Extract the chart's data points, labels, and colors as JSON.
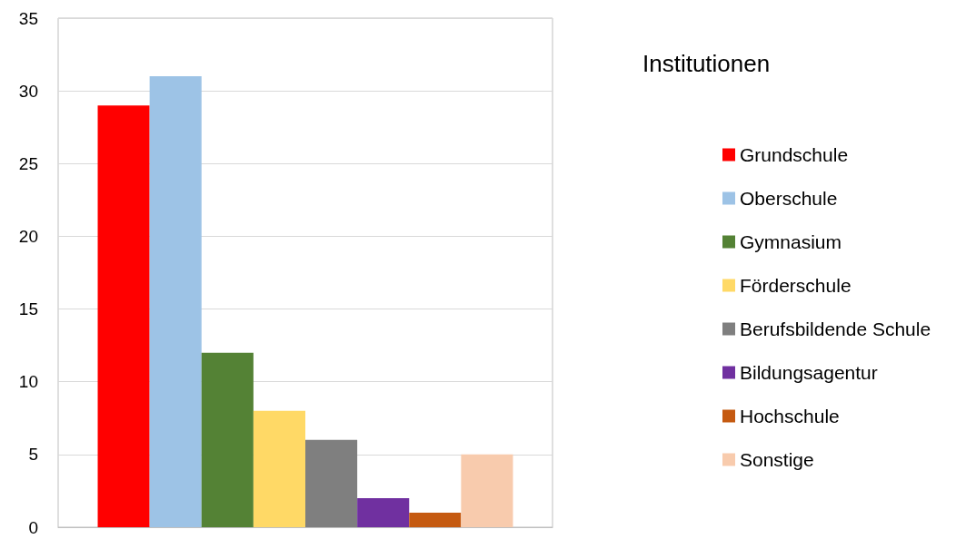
{
  "chart_data": {
    "type": "bar",
    "legend_title": "Institutionen",
    "categories": [
      null
    ],
    "series": [
      {
        "name": "Grundschule",
        "color": "#ff0000",
        "values": [
          29
        ]
      },
      {
        "name": "Oberschule",
        "color": "#9dc3e6",
        "values": [
          31
        ]
      },
      {
        "name": "Gymnasium",
        "color": "#548235",
        "values": [
          12
        ]
      },
      {
        "name": "Förderschule",
        "color": "#ffd966",
        "values": [
          8
        ]
      },
      {
        "name": "Berufsbildende Schule",
        "color": "#7f7f7f",
        "values": [
          6
        ]
      },
      {
        "name": "Bildungsagentur",
        "color": "#7030a0",
        "values": [
          2
        ]
      },
      {
        "name": "Hochschule",
        "color": "#c55a11",
        "values": [
          1
        ]
      },
      {
        "name": "Sonstige",
        "color": "#f8cbad",
        "values": [
          5
        ]
      }
    ],
    "ylim": [
      0,
      35
    ],
    "yticks": [
      0,
      5,
      10,
      15,
      20,
      25,
      30,
      35
    ],
    "grid": "y",
    "legend": "right"
  }
}
